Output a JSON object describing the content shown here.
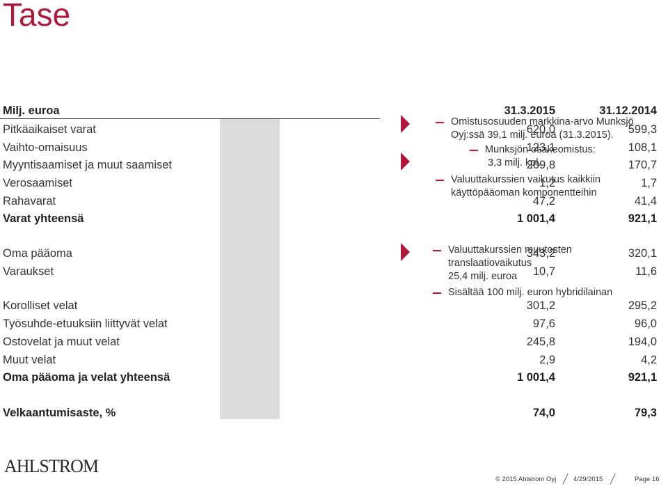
{
  "title": "Tase",
  "table": {
    "header": {
      "label": "Milj. euroa",
      "col1": "31.3.2015",
      "col2": "31.12.2014"
    },
    "assets": [
      {
        "label": "Pitkäaikaiset varat",
        "v1": "620,0",
        "v2": "599,3"
      },
      {
        "label": "Vaihto-omaisuus",
        "v1": "123,1",
        "v2": "108,1"
      },
      {
        "label": "Myyntisaamiset ja muut saamiset",
        "v1": "209,8",
        "v2": "170,7"
      },
      {
        "label": "Verosaamiset",
        "v1": "1,2",
        "v2": "1,7"
      },
      {
        "label": "Rahavarat",
        "v1": "47,2",
        "v2": "41,4"
      }
    ],
    "assets_total": {
      "label": "Varat yhteensä",
      "v1": "1 001,4",
      "v2": "921,1"
    },
    "equity": [
      {
        "label": "Oma pääoma",
        "v1": "343,2",
        "v2": "320,1"
      },
      {
        "label": "Varaukset",
        "v1": "10,7",
        "v2": "11,6"
      }
    ],
    "liabilities": [
      {
        "label": "Korolliset velat",
        "v1": "301,2",
        "v2": "295,2"
      },
      {
        "label": "Työsuhde-etuuksiin liittyvät velat",
        "v1": "97,6",
        "v2": "96,0"
      },
      {
        "label": "Ostovelat ja muut velat",
        "v1": "245,8",
        "v2": "194,0"
      },
      {
        "label": "Muut velat",
        "v1": "2,9",
        "v2": "4,2"
      }
    ],
    "liabilities_total": {
      "label": "Oma pääoma ja velat yhteensä",
      "v1": "1 001,4",
      "v2": "921,1"
    },
    "gearing": {
      "label": "Velkaantumisaste, %",
      "v1": "74,0",
      "v2": "79,3"
    }
  },
  "notes_top": {
    "b1": "Omistusosuuden markkina-arvo Munksjö",
    "b1b": "Oyj:ssä 39,1 milj. euroa (31.3.2015).",
    "b1sub": "Munksjön osakeomistus:",
    "b1subb": "3,3 milj. kpl.",
    "b2": "Valuuttakurssien vaikutus kaikkiin",
    "b2b": "käyttöpääoman komponentteihin"
  },
  "notes_bottom": {
    "b1": "Valuuttakurssien muutosten",
    "b1b": "translaatiovaikutus",
    "b1c": "25,4 milj. euroa",
    "b2": "Sisältää 100 milj. euron hybridilainan"
  },
  "footer": {
    "logo": "AHLSTROM",
    "copyright": "© 2015 Ahlstrom Oyj",
    "date": "4/29/2015",
    "page": "Page 16"
  },
  "colors": {
    "accent": "#b0173b",
    "shade": "#dcdcdc"
  }
}
